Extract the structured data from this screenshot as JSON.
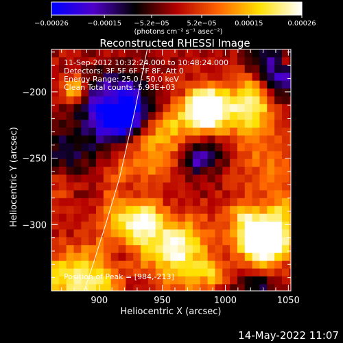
{
  "chart_data": {
    "type": "heatmap",
    "title": "Reconstructed RHESSI Image",
    "xlabel": "Heliocentric X (arcsec)",
    "ylabel": "Heliocentric Y (arcsec)",
    "xlim": [
      862,
      1052
    ],
    "ylim": [
      -350,
      -168
    ],
    "x_ticks": [
      900,
      950,
      1000,
      1050
    ],
    "y_ticks": [
      -200,
      -250,
      -300
    ],
    "colorbar": {
      "range": [
        -0.00026,
        0.00026
      ],
      "tick_values": [
        -0.00026,
        -0.00015,
        -5.2e-05,
        5.2e-05,
        0.00015,
        0.00026
      ],
      "tick_labels": [
        "-0.00026",
        "-0.00015",
        "-5.2e-05",
        "5.2e-05",
        "0.00015",
        "0.00026"
      ],
      "units": "(photons cm⁻² s⁻¹ asec⁻²)",
      "colormap": [
        "#0000ff",
        "#5000c8",
        "#000000",
        "#b40000",
        "#ff6400",
        "#ffe000",
        "#ffffff"
      ]
    },
    "annotations": [
      "11-Sep-2012 10:32:24.000 to 10:48:24.000",
      "Detectors: 3F 5F 6F 7F 8F, Att 0",
      "Energy Range: 25.0 - 50.0 keV",
      "Clean    Total counts: 5.93E+03",
      "Position of Peak = [984,-213]"
    ],
    "limb_curve": [
      [
        938,
        -168
      ],
      [
        928,
        -215
      ],
      [
        916,
        -265
      ],
      [
        905,
        -300
      ],
      [
        895,
        -330
      ],
      [
        888,
        -350
      ]
    ],
    "peak": [
      984,
      -213
    ],
    "grid": false,
    "legend": "none"
  },
  "footer": {
    "timestamp": "14-May-2022 11:07"
  }
}
